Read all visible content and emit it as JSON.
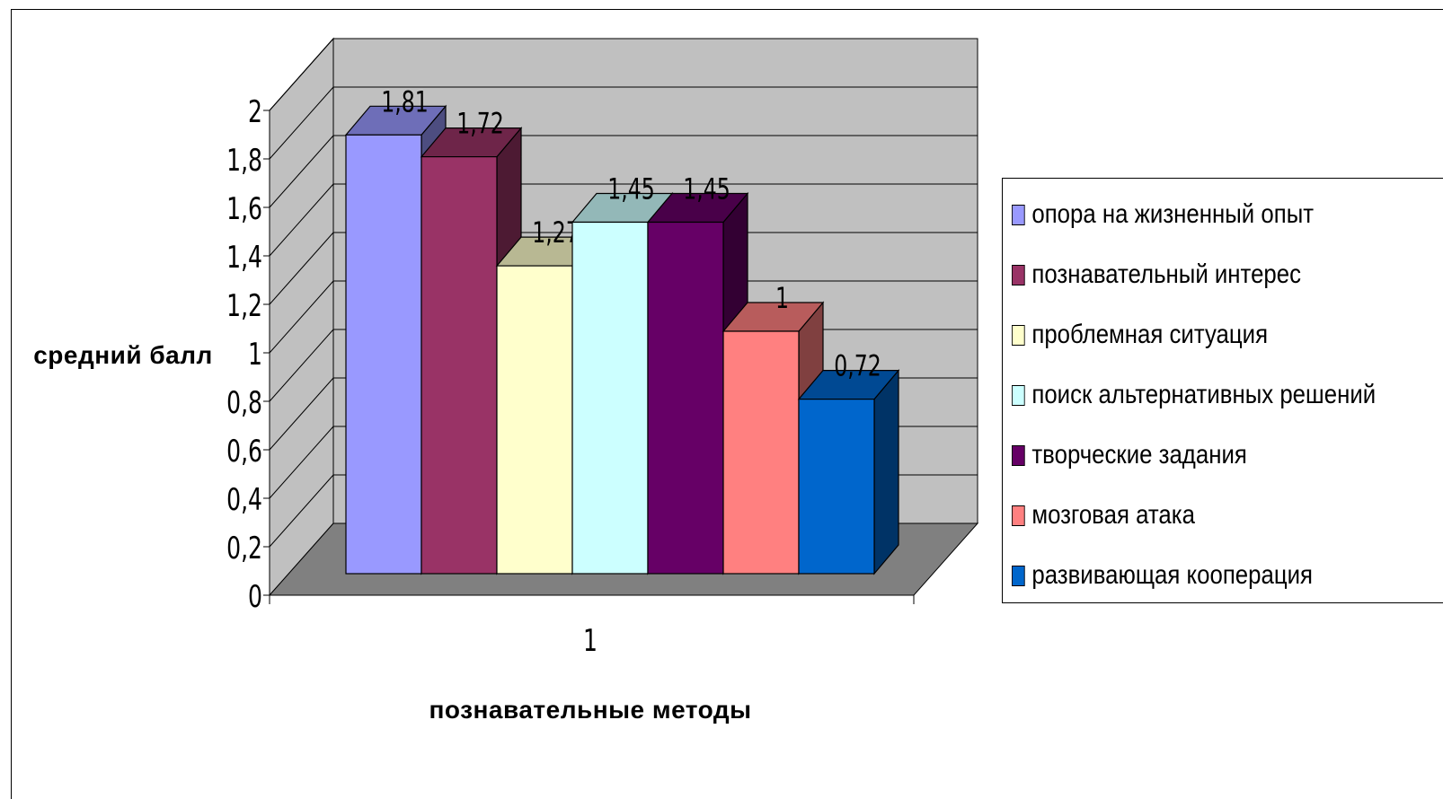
{
  "chart_data": {
    "type": "bar",
    "title": "",
    "ylabel": "средний балл",
    "xlabel": "познавательные методы",
    "categories": [
      "1"
    ],
    "ylim": [
      0,
      2
    ],
    "yticks": [
      "0",
      "0,2",
      "0,4",
      "0,6",
      "0,8",
      "1",
      "1,2",
      "1,4",
      "1,6",
      "1,8",
      "2"
    ],
    "series": [
      {
        "name": "опора на жизненный опыт",
        "values": [
          1.81
        ],
        "label": "1,81",
        "color": "#9999ff"
      },
      {
        "name": "познавательный интерес",
        "values": [
          1.72
        ],
        "label": "1,72",
        "color": "#993366"
      },
      {
        "name": "проблемная ситуация",
        "values": [
          1.27
        ],
        "label": "1,27",
        "color": "#ffffcc"
      },
      {
        "name": "поиск альтернативных решений",
        "values": [
          1.45
        ],
        "label": "1,45",
        "color": "#ccffff"
      },
      {
        "name": "творческие задания",
        "values": [
          1.45
        ],
        "label": "1,45",
        "color": "#660066"
      },
      {
        "name": "мозговая атака",
        "values": [
          1
        ],
        "label": "1",
        "color": "#ff8080"
      },
      {
        "name": "развивающая кооперация",
        "values": [
          0.72
        ],
        "label": "0,72",
        "color": "#0066cc"
      }
    ],
    "grid": true,
    "legend": "right",
    "style": "3d-column",
    "wall_color": "#c0c0c0",
    "floor_color": "#808080"
  }
}
